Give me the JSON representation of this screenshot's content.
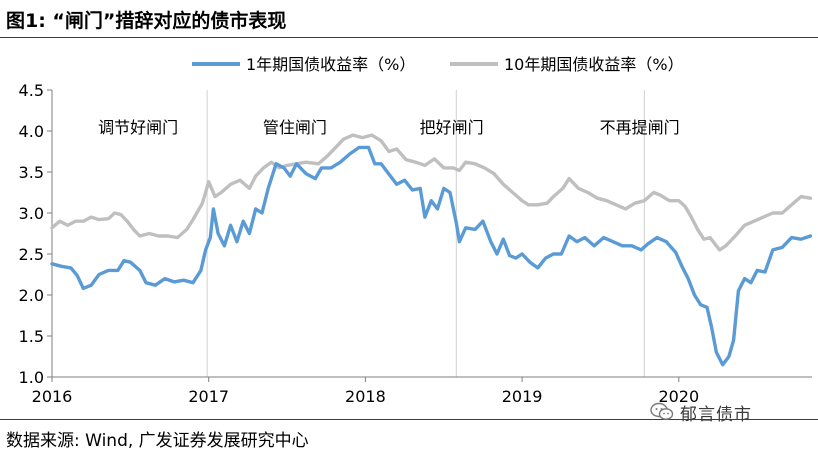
{
  "header": {
    "title": "图1: “闸门”措辞对应的债市表现"
  },
  "footer": {
    "source": "数据来源: Wind, 广发证券发展研究中心",
    "watermark": "郁言债市"
  },
  "colors": {
    "series1": "#5b9bd5",
    "series2": "#bfbfbf",
    "divider": "#1f3f8a",
    "axis": "#7f7f7f"
  },
  "icons": {
    "watermark": "wechat-icon"
  },
  "chart_data": {
    "type": "line",
    "title": "",
    "xlabel": "",
    "ylabel": "",
    "x_range": [
      2016.0,
      2020.85
    ],
    "ylim": [
      1.0,
      4.5
    ],
    "y_ticks": [
      "1.0",
      "1.5",
      "2.0",
      "2.5",
      "3.0",
      "3.5",
      "4.0",
      "4.5"
    ],
    "x_ticks": [
      {
        "value": 2016.0,
        "label": "2016"
      },
      {
        "value": 2017.0,
        "label": "2017"
      },
      {
        "value": 2018.0,
        "label": "2018"
      },
      {
        "value": 2019.0,
        "label": "2019"
      },
      {
        "value": 2020.0,
        "label": "2020"
      }
    ],
    "grid": false,
    "legend_position": "top",
    "annotations": [
      {
        "x": 2016.55,
        "text": "调节好闸门"
      },
      {
        "x": 2017.55,
        "text": "管住闸门"
      },
      {
        "x": 2018.55,
        "text": "把好闸门"
      },
      {
        "x": 2019.75,
        "text": "不再提闸门"
      }
    ],
    "vlines": [
      2016.99,
      2018.58,
      2019.78
    ],
    "series": [
      {
        "name": "1年期国债收益率（%）",
        "color": "#5b9bd5",
        "width": 3.4,
        "points": [
          [
            2016.0,
            2.38
          ],
          [
            2016.06,
            2.35
          ],
          [
            2016.12,
            2.33
          ],
          [
            2016.16,
            2.24
          ],
          [
            2016.2,
            2.08
          ],
          [
            2016.25,
            2.12
          ],
          [
            2016.3,
            2.25
          ],
          [
            2016.36,
            2.3
          ],
          [
            2016.42,
            2.3
          ],
          [
            2016.46,
            2.42
          ],
          [
            2016.5,
            2.4
          ],
          [
            2016.56,
            2.3
          ],
          [
            2016.6,
            2.15
          ],
          [
            2016.66,
            2.12
          ],
          [
            2016.72,
            2.2
          ],
          [
            2016.78,
            2.16
          ],
          [
            2016.84,
            2.18
          ],
          [
            2016.9,
            2.15
          ],
          [
            2016.95,
            2.3
          ],
          [
            2016.98,
            2.55
          ],
          [
            2017.01,
            2.7
          ],
          [
            2017.03,
            3.05
          ],
          [
            2017.06,
            2.75
          ],
          [
            2017.1,
            2.6
          ],
          [
            2017.14,
            2.85
          ],
          [
            2017.18,
            2.65
          ],
          [
            2017.22,
            2.9
          ],
          [
            2017.26,
            2.75
          ],
          [
            2017.3,
            3.05
          ],
          [
            2017.34,
            3.0
          ],
          [
            2017.38,
            3.3
          ],
          [
            2017.43,
            3.6
          ],
          [
            2017.48,
            3.55
          ],
          [
            2017.52,
            3.45
          ],
          [
            2017.56,
            3.6
          ],
          [
            2017.62,
            3.48
          ],
          [
            2017.68,
            3.42
          ],
          [
            2017.72,
            3.55
          ],
          [
            2017.78,
            3.55
          ],
          [
            2017.84,
            3.62
          ],
          [
            2017.9,
            3.72
          ],
          [
            2017.96,
            3.8
          ],
          [
            2018.02,
            3.8
          ],
          [
            2018.06,
            3.6
          ],
          [
            2018.1,
            3.6
          ],
          [
            2018.14,
            3.5
          ],
          [
            2018.2,
            3.35
          ],
          [
            2018.25,
            3.4
          ],
          [
            2018.3,
            3.28
          ],
          [
            2018.35,
            3.3
          ],
          [
            2018.38,
            2.95
          ],
          [
            2018.42,
            3.15
          ],
          [
            2018.46,
            3.05
          ],
          [
            2018.5,
            3.3
          ],
          [
            2018.54,
            3.25
          ],
          [
            2018.58,
            2.88
          ],
          [
            2018.6,
            2.65
          ],
          [
            2018.64,
            2.82
          ],
          [
            2018.7,
            2.8
          ],
          [
            2018.75,
            2.9
          ],
          [
            2018.8,
            2.65
          ],
          [
            2018.84,
            2.5
          ],
          [
            2018.88,
            2.68
          ],
          [
            2018.92,
            2.48
          ],
          [
            2018.96,
            2.45
          ],
          [
            2019.0,
            2.5
          ],
          [
            2019.05,
            2.4
          ],
          [
            2019.1,
            2.33
          ],
          [
            2019.15,
            2.45
          ],
          [
            2019.2,
            2.5
          ],
          [
            2019.25,
            2.5
          ],
          [
            2019.3,
            2.72
          ],
          [
            2019.35,
            2.65
          ],
          [
            2019.4,
            2.7
          ],
          [
            2019.46,
            2.6
          ],
          [
            2019.52,
            2.7
          ],
          [
            2019.58,
            2.65
          ],
          [
            2019.64,
            2.6
          ],
          [
            2019.7,
            2.6
          ],
          [
            2019.76,
            2.55
          ],
          [
            2019.8,
            2.62
          ],
          [
            2019.86,
            2.7
          ],
          [
            2019.92,
            2.65
          ],
          [
            2019.98,
            2.52
          ],
          [
            2020.02,
            2.35
          ],
          [
            2020.06,
            2.2
          ],
          [
            2020.1,
            2.0
          ],
          [
            2020.14,
            1.88
          ],
          [
            2020.18,
            1.85
          ],
          [
            2020.21,
            1.6
          ],
          [
            2020.24,
            1.3
          ],
          [
            2020.28,
            1.15
          ],
          [
            2020.32,
            1.25
          ],
          [
            2020.35,
            1.45
          ],
          [
            2020.38,
            2.05
          ],
          [
            2020.42,
            2.2
          ],
          [
            2020.46,
            2.15
          ],
          [
            2020.5,
            2.3
          ],
          [
            2020.55,
            2.28
          ],
          [
            2020.6,
            2.55
          ],
          [
            2020.66,
            2.58
          ],
          [
            2020.72,
            2.7
          ],
          [
            2020.78,
            2.68
          ],
          [
            2020.84,
            2.72
          ]
        ]
      },
      {
        "name": "10年期国债收益率（%）",
        "color": "#bfbfbf",
        "width": 3.4,
        "points": [
          [
            2016.0,
            2.82
          ],
          [
            2016.05,
            2.9
          ],
          [
            2016.1,
            2.85
          ],
          [
            2016.15,
            2.9
          ],
          [
            2016.2,
            2.9
          ],
          [
            2016.25,
            2.95
          ],
          [
            2016.3,
            2.92
          ],
          [
            2016.36,
            2.93
          ],
          [
            2016.4,
            3.0
          ],
          [
            2016.44,
            2.98
          ],
          [
            2016.48,
            2.9
          ],
          [
            2016.52,
            2.8
          ],
          [
            2016.56,
            2.72
          ],
          [
            2016.62,
            2.75
          ],
          [
            2016.68,
            2.72
          ],
          [
            2016.74,
            2.72
          ],
          [
            2016.8,
            2.7
          ],
          [
            2016.86,
            2.8
          ],
          [
            2016.9,
            2.92
          ],
          [
            2016.96,
            3.12
          ],
          [
            2017.0,
            3.38
          ],
          [
            2017.04,
            3.2
          ],
          [
            2017.08,
            3.25
          ],
          [
            2017.14,
            3.35
          ],
          [
            2017.2,
            3.4
          ],
          [
            2017.26,
            3.3
          ],
          [
            2017.3,
            3.45
          ],
          [
            2017.35,
            3.55
          ],
          [
            2017.4,
            3.62
          ],
          [
            2017.45,
            3.55
          ],
          [
            2017.5,
            3.58
          ],
          [
            2017.56,
            3.6
          ],
          [
            2017.62,
            3.62
          ],
          [
            2017.7,
            3.6
          ],
          [
            2017.76,
            3.7
          ],
          [
            2017.82,
            3.82
          ],
          [
            2017.86,
            3.9
          ],
          [
            2017.92,
            3.95
          ],
          [
            2017.98,
            3.92
          ],
          [
            2018.04,
            3.95
          ],
          [
            2018.1,
            3.88
          ],
          [
            2018.15,
            3.75
          ],
          [
            2018.2,
            3.78
          ],
          [
            2018.26,
            3.65
          ],
          [
            2018.32,
            3.62
          ],
          [
            2018.38,
            3.58
          ],
          [
            2018.44,
            3.66
          ],
          [
            2018.5,
            3.55
          ],
          [
            2018.56,
            3.55
          ],
          [
            2018.6,
            3.52
          ],
          [
            2018.64,
            3.62
          ],
          [
            2018.7,
            3.6
          ],
          [
            2018.76,
            3.55
          ],
          [
            2018.82,
            3.48
          ],
          [
            2018.88,
            3.35
          ],
          [
            2018.94,
            3.25
          ],
          [
            2019.0,
            3.15
          ],
          [
            2019.04,
            3.1
          ],
          [
            2019.1,
            3.1
          ],
          [
            2019.16,
            3.12
          ],
          [
            2019.2,
            3.2
          ],
          [
            2019.26,
            3.3
          ],
          [
            2019.3,
            3.42
          ],
          [
            2019.36,
            3.3
          ],
          [
            2019.42,
            3.25
          ],
          [
            2019.48,
            3.18
          ],
          [
            2019.54,
            3.15
          ],
          [
            2019.6,
            3.1
          ],
          [
            2019.66,
            3.05
          ],
          [
            2019.72,
            3.12
          ],
          [
            2019.78,
            3.15
          ],
          [
            2019.84,
            3.25
          ],
          [
            2019.88,
            3.22
          ],
          [
            2019.94,
            3.15
          ],
          [
            2020.0,
            3.15
          ],
          [
            2020.04,
            3.08
          ],
          [
            2020.08,
            2.95
          ],
          [
            2020.12,
            2.8
          ],
          [
            2020.16,
            2.68
          ],
          [
            2020.2,
            2.7
          ],
          [
            2020.26,
            2.55
          ],
          [
            2020.3,
            2.6
          ],
          [
            2020.36,
            2.72
          ],
          [
            2020.42,
            2.85
          ],
          [
            2020.48,
            2.9
          ],
          [
            2020.54,
            2.95
          ],
          [
            2020.6,
            3.0
          ],
          [
            2020.66,
            3.0
          ],
          [
            2020.72,
            3.1
          ],
          [
            2020.78,
            3.2
          ],
          [
            2020.84,
            3.18
          ]
        ]
      }
    ]
  }
}
